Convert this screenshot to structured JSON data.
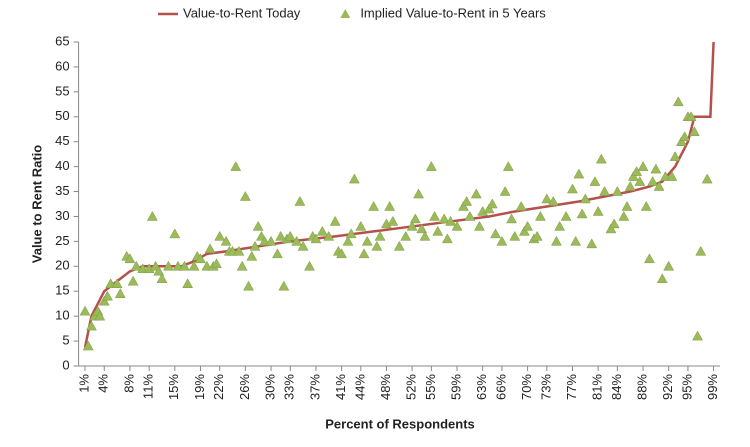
{
  "chart_data": {
    "type": "line",
    "x_label": "Percent of Respondents",
    "y_label": "Value to Rent Ratio",
    "legend": "top",
    "grid": false,
    "xlim": [
      0,
      100
    ],
    "ylim": [
      0,
      65
    ],
    "yticks": [
      0,
      5,
      10,
      15,
      20,
      25,
      30,
      35,
      40,
      45,
      50,
      55,
      60,
      65
    ],
    "xticks": [
      {
        "value": 1,
        "label": "1%"
      },
      {
        "value": 4,
        "label": "4%"
      },
      {
        "value": 8,
        "label": "8%"
      },
      {
        "value": 11,
        "label": "11%"
      },
      {
        "value": 15,
        "label": "15%"
      },
      {
        "value": 19,
        "label": "19%"
      },
      {
        "value": 22,
        "label": "22%"
      },
      {
        "value": 26,
        "label": "26%"
      },
      {
        "value": 30,
        "label": "30%"
      },
      {
        "value": 33,
        "label": "33%"
      },
      {
        "value": 37,
        "label": "37%"
      },
      {
        "value": 41,
        "label": "41%"
      },
      {
        "value": 44,
        "label": "44%"
      },
      {
        "value": 48,
        "label": "48%"
      },
      {
        "value": 52,
        "label": "52%"
      },
      {
        "value": 55,
        "label": "55%"
      },
      {
        "value": 59,
        "label": "59%"
      },
      {
        "value": 63,
        "label": "63%"
      },
      {
        "value": 66,
        "label": "66%"
      },
      {
        "value": 70,
        "label": "70%"
      },
      {
        "value": 73,
        "label": "73%"
      },
      {
        "value": 77,
        "label": "77%"
      },
      {
        "value": 81,
        "label": "81%"
      },
      {
        "value": 84,
        "label": "84%"
      },
      {
        "value": 88,
        "label": "88%"
      },
      {
        "value": 92,
        "label": "92%"
      },
      {
        "value": 95,
        "label": "95%"
      },
      {
        "value": 99,
        "label": "99%"
      }
    ],
    "series": [
      {
        "name": "Value-to-Rent Today",
        "type": "line",
        "color": "#b5504c",
        "x": [
          1,
          2,
          4,
          6,
          8,
          10,
          16,
          18,
          20,
          23,
          28,
          33,
          40,
          46,
          52,
          58,
          64,
          68,
          73,
          78,
          82,
          86,
          89,
          91,
          93,
          95,
          96,
          98.5,
          99
        ],
        "values": [
          3.7,
          10,
          15,
          17,
          19,
          20,
          20,
          21,
          22.5,
          23,
          24,
          25,
          26,
          27,
          28,
          29,
          30,
          31,
          32,
          33,
          34,
          35,
          36,
          37,
          40,
          45,
          50,
          50,
          65
        ]
      },
      {
        "name": "Implied Value-to-Rent in 5 Years",
        "type": "scatter",
        "color": "#9bbb59",
        "x": [
          1,
          1.5,
          2,
          2.5,
          3,
          3.3,
          4,
          4.5,
          5,
          6,
          6.5,
          7.5,
          8,
          8.5,
          9,
          10,
          11,
          11.5,
          12,
          12.5,
          13,
          14,
          15,
          15.5,
          16.5,
          17,
          18,
          18.5,
          19,
          20,
          20.5,
          21,
          21.5,
          22,
          23,
          23.5,
          24,
          24.5,
          25,
          25.5,
          26,
          26.5,
          27,
          27.5,
          28,
          28.5,
          29,
          30,
          31,
          31.5,
          32,
          32.5,
          33,
          34,
          34.5,
          35,
          36,
          36.5,
          37,
          38,
          39,
          40,
          40.5,
          41,
          42,
          42.5,
          43,
          44,
          44.5,
          45,
          46,
          46.5,
          47,
          48,
          48.5,
          49,
          50,
          51,
          52,
          52.5,
          53,
          53.5,
          54,
          55,
          55.5,
          56,
          57,
          57.5,
          58,
          59,
          60,
          60.5,
          61,
          62,
          62.5,
          63,
          64,
          64.5,
          65,
          66,
          66.5,
          67,
          67.5,
          68,
          69,
          69.5,
          70,
          71,
          71.5,
          72,
          73,
          74,
          74.5,
          75,
          76,
          77,
          77.5,
          78,
          78.5,
          79,
          80,
          80.5,
          81,
          81.5,
          82,
          83,
          83.5,
          84,
          85,
          85.5,
          86,
          86.5,
          87,
          87.5,
          88,
          88.5,
          89,
          89.5,
          90,
          90.5,
          91,
          91.5,
          92,
          92.5,
          93,
          93.5,
          94,
          94.5,
          95,
          95.5,
          96,
          96.5,
          97,
          98
        ],
        "values": [
          11,
          4,
          8,
          10,
          11,
          10,
          13,
          14,
          16.5,
          16.5,
          14.5,
          22,
          21.5,
          17,
          20,
          19.5,
          19.5,
          30,
          20,
          19,
          17.5,
          20,
          26.5,
          20,
          20,
          16.5,
          20,
          22,
          21.5,
          20,
          23.5,
          20,
          20.5,
          26,
          25,
          23,
          23,
          40,
          23,
          20,
          34,
          16,
          22,
          24,
          28,
          26,
          25,
          25,
          22.5,
          26,
          16,
          25.5,
          26,
          25,
          33,
          24,
          20,
          26,
          25.5,
          27,
          26,
          29,
          23,
          22.5,
          25,
          26.5,
          37.5,
          28,
          22.5,
          25,
          32,
          24,
          26,
          28.5,
          32,
          29,
          24,
          26,
          28,
          29.5,
          34.5,
          27.5,
          26,
          40,
          30,
          27,
          29.5,
          25.5,
          29,
          28,
          32,
          33,
          30,
          34.5,
          28,
          31,
          31.5,
          32.5,
          26.5,
          25,
          35,
          40,
          29.5,
          26,
          32,
          27,
          28,
          25.5,
          26,
          30,
          33.5,
          33,
          25,
          28,
          30,
          35.5,
          25,
          38.5,
          30.5,
          33.5,
          24.5,
          37,
          31,
          41.5,
          35,
          27.5,
          28.5,
          35,
          30,
          32,
          36,
          38,
          39,
          37,
          40,
          32,
          21.5,
          37,
          39.5,
          36,
          17.5,
          38,
          20,
          38,
          42,
          53,
          45,
          46,
          50,
          50,
          47,
          6,
          23,
          37.5
        ]
      }
    ]
  }
}
